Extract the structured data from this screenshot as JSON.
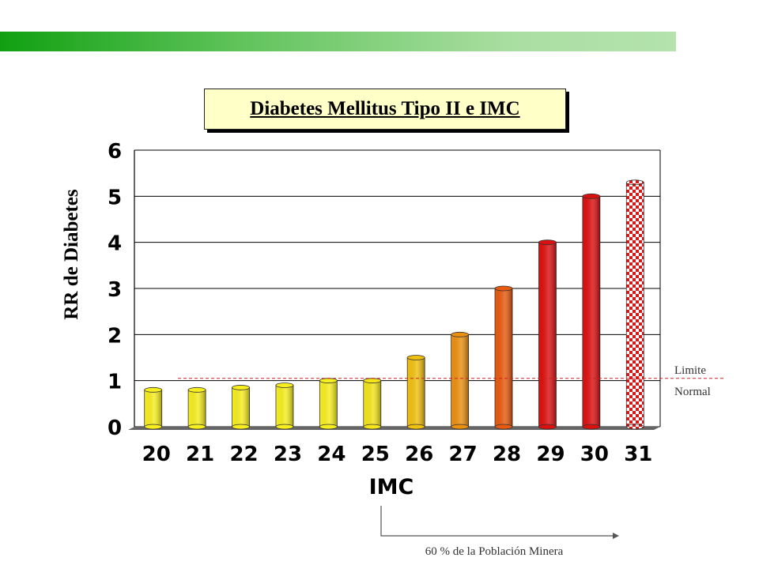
{
  "colors": {
    "topbar_start": "#11a012",
    "topbar_end": "#b4e3ad",
    "title_bg": "#ffffc8",
    "threshold_line": "#cc2222"
  },
  "title": "Diabetes Mellitus Tipo II e IMC",
  "chart_data": {
    "type": "bar",
    "title": "Diabetes Mellitus Tipo II e IMC",
    "xlabel": "IMC",
    "ylabel": "RR de Diabetes",
    "categories": [
      "20",
      "21",
      "22",
      "23",
      "24",
      "25",
      "26",
      "27",
      "28",
      "29",
      "30",
      "31"
    ],
    "values": [
      0.8,
      0.8,
      0.85,
      0.9,
      1.0,
      1.0,
      1.5,
      2.0,
      3.0,
      4.0,
      5.0,
      5.3
    ],
    "bar_colors": [
      "#f7ee1e",
      "#f7ee1e",
      "#f7ee1e",
      "#f7ee1e",
      "#f7ee1e",
      "#f4e418",
      "#f0c010",
      "#ec9010",
      "#e85a10",
      "#dd1010",
      "#dd1010",
      "#e02020"
    ],
    "patterned_bars": [
      "31"
    ],
    "ylim": [
      0,
      6
    ],
    "yticks": [
      "0",
      "1",
      "2",
      "3",
      "4",
      "5",
      "6"
    ],
    "grid": true,
    "threshold": {
      "value": 1.05,
      "label_line1": "Limite",
      "label_line2": "Normal"
    }
  },
  "annotation": {
    "bracket_label": "60 % de la Población Minera"
  }
}
